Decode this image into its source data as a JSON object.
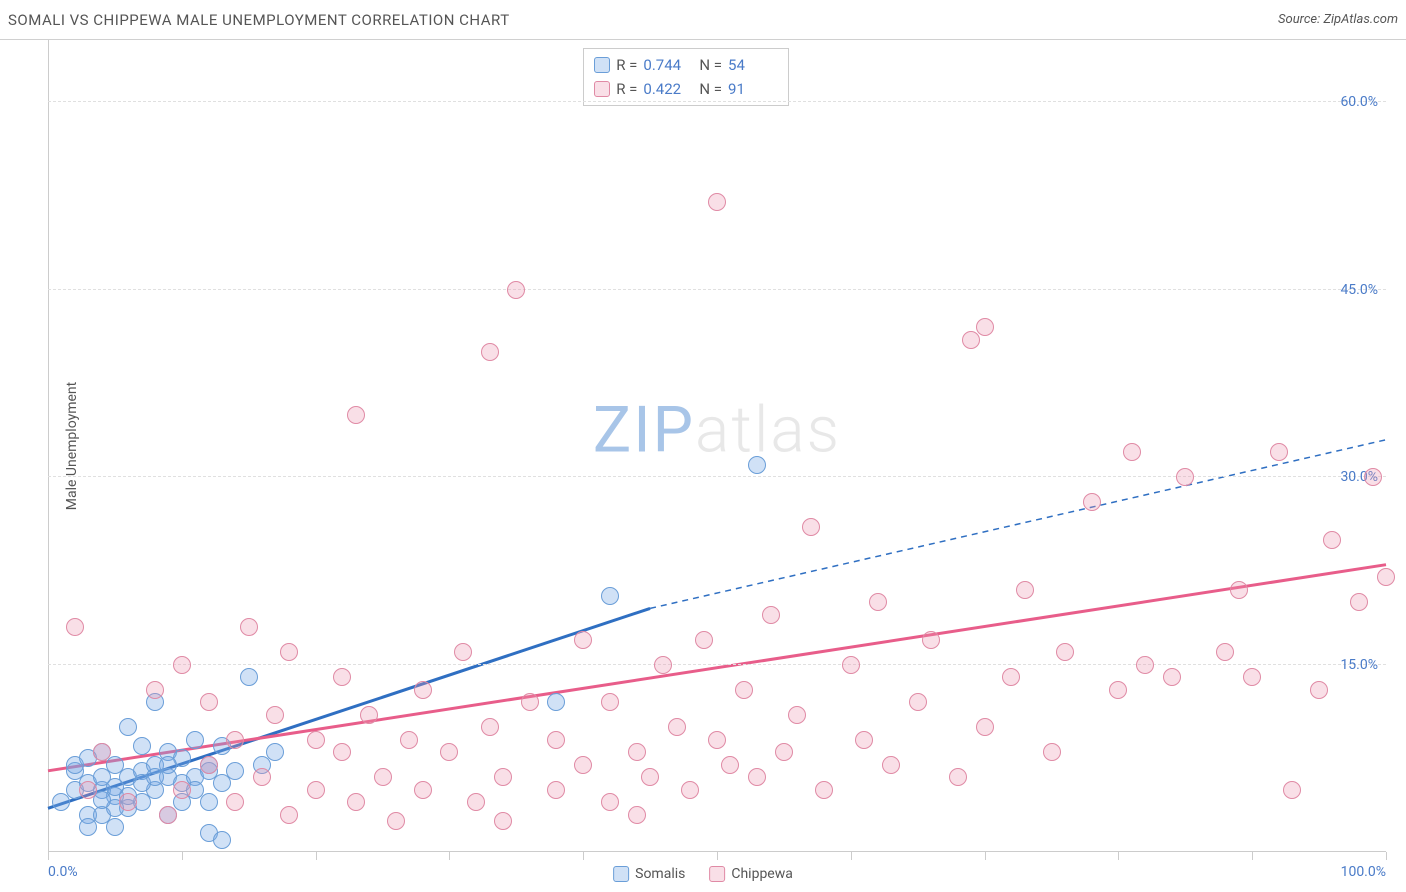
{
  "header": {
    "title": "SOMALI VS CHIPPEWA MALE UNEMPLOYMENT CORRELATION CHART",
    "source_prefix": "Source: ",
    "source_name": "ZipAtlas.com"
  },
  "ylabel": "Male Unemployment",
  "watermark": {
    "prefix": "ZIP",
    "suffix": "atlas"
  },
  "chart": {
    "type": "scatter",
    "xlim": [
      0,
      100
    ],
    "ylim": [
      0,
      65
    ],
    "xtick_positions": [
      0,
      10,
      20,
      30,
      40,
      50,
      60,
      70,
      80,
      90,
      100
    ],
    "xtick_labels": {
      "0": "0.0%",
      "100": "100.0%"
    },
    "ytick_positions": [
      15,
      30,
      45,
      60
    ],
    "ytick_labels": [
      "15.0%",
      "30.0%",
      "45.0%",
      "60.0%"
    ],
    "grid_color": "#e0e0e0",
    "axis_color": "#cccccc",
    "tick_label_color": "#4a7bc8",
    "point_radius": 9,
    "series": [
      {
        "name": "Somalis",
        "fill": "rgba(120,170,230,0.35)",
        "stroke": "#6a9ed8",
        "trend_color": "#2f6fc2",
        "trend_width": 3,
        "R": "0.744",
        "N": "54",
        "trend": {
          "x1": 0,
          "y1": 3.5,
          "x2": 45,
          "y2": 19.5,
          "dash_to_x": 100,
          "dash_to_y": 33
        },
        "points": [
          [
            1,
            4
          ],
          [
            2,
            5
          ],
          [
            2,
            6.5
          ],
          [
            3,
            3
          ],
          [
            3,
            5.5
          ],
          [
            4,
            5
          ],
          [
            4,
            6
          ],
          [
            4,
            8
          ],
          [
            5,
            2
          ],
          [
            5,
            4.5
          ],
          [
            5,
            7
          ],
          [
            6,
            3.5
          ],
          [
            6,
            6
          ],
          [
            6,
            10
          ],
          [
            7,
            4
          ],
          [
            7,
            6.5
          ],
          [
            7,
            8.5
          ],
          [
            8,
            5
          ],
          [
            8,
            7
          ],
          [
            8,
            12
          ],
          [
            9,
            3
          ],
          [
            9,
            6
          ],
          [
            9,
            8
          ],
          [
            10,
            5.5
          ],
          [
            10,
            7.5
          ],
          [
            11,
            6
          ],
          [
            11,
            9
          ],
          [
            12,
            4
          ],
          [
            12,
            7
          ],
          [
            13,
            5.5
          ],
          [
            13,
            8.5
          ],
          [
            14,
            6.5
          ],
          [
            15,
            14
          ],
          [
            16,
            7
          ],
          [
            17,
            8
          ],
          [
            12,
            1.5
          ],
          [
            13,
            1
          ],
          [
            3,
            2
          ],
          [
            4,
            3
          ],
          [
            5,
            3.5
          ],
          [
            6,
            4.5
          ],
          [
            7,
            5.5
          ],
          [
            8,
            6
          ],
          [
            9,
            7
          ],
          [
            10,
            4
          ],
          [
            11,
            5
          ],
          [
            12,
            6.5
          ],
          [
            38,
            12
          ],
          [
            42,
            20.5
          ],
          [
            53,
            31
          ],
          [
            2,
            7
          ],
          [
            3,
            7.5
          ],
          [
            4,
            4.2
          ],
          [
            5,
            5.2
          ]
        ]
      },
      {
        "name": "Chippewa",
        "fill": "rgba(235,150,175,0.30)",
        "stroke": "#e08aa5",
        "trend_color": "#e85d8a",
        "trend_width": 3,
        "R": "0.422",
        "N": "91",
        "trend": {
          "x1": 0,
          "y1": 6.5,
          "x2": 100,
          "y2": 23
        },
        "points": [
          [
            2,
            18
          ],
          [
            3,
            5
          ],
          [
            4,
            8
          ],
          [
            6,
            4
          ],
          [
            8,
            13
          ],
          [
            9,
            3
          ],
          [
            10,
            5
          ],
          [
            10,
            15
          ],
          [
            12,
            7
          ],
          [
            12,
            12
          ],
          [
            14,
            4
          ],
          [
            14,
            9
          ],
          [
            15,
            18
          ],
          [
            16,
            6
          ],
          [
            17,
            11
          ],
          [
            18,
            3
          ],
          [
            18,
            16
          ],
          [
            20,
            5
          ],
          [
            20,
            9
          ],
          [
            22,
            8
          ],
          [
            22,
            14
          ],
          [
            23,
            4
          ],
          [
            23,
            35
          ],
          [
            24,
            11
          ],
          [
            25,
            6
          ],
          [
            26,
            2.5
          ],
          [
            27,
            9
          ],
          [
            28,
            5
          ],
          [
            28,
            13
          ],
          [
            30,
            8
          ],
          [
            31,
            16
          ],
          [
            32,
            4
          ],
          [
            33,
            40
          ],
          [
            33,
            10
          ],
          [
            34,
            6
          ],
          [
            35,
            45
          ],
          [
            36,
            12
          ],
          [
            38,
            5
          ],
          [
            38,
            9
          ],
          [
            40,
            7
          ],
          [
            40,
            17
          ],
          [
            42,
            4
          ],
          [
            42,
            12
          ],
          [
            44,
            8
          ],
          [
            45,
            6
          ],
          [
            46,
            15
          ],
          [
            47,
            10
          ],
          [
            48,
            5
          ],
          [
            49,
            17
          ],
          [
            50,
            9
          ],
          [
            50,
            52
          ],
          [
            51,
            7
          ],
          [
            52,
            13
          ],
          [
            53,
            6
          ],
          [
            54,
            19
          ],
          [
            55,
            8
          ],
          [
            56,
            11
          ],
          [
            57,
            26
          ],
          [
            58,
            5
          ],
          [
            60,
            15
          ],
          [
            61,
            9
          ],
          [
            62,
            20
          ],
          [
            63,
            7
          ],
          [
            65,
            12
          ],
          [
            66,
            17
          ],
          [
            68,
            6
          ],
          [
            69,
            41
          ],
          [
            70,
            10
          ],
          [
            70,
            42
          ],
          [
            72,
            14
          ],
          [
            73,
            21
          ],
          [
            75,
            8
          ],
          [
            76,
            16
          ],
          [
            78,
            28
          ],
          [
            80,
            13
          ],
          [
            81,
            32
          ],
          [
            82,
            15
          ],
          [
            84,
            14
          ],
          [
            85,
            30
          ],
          [
            88,
            16
          ],
          [
            89,
            21
          ],
          [
            90,
            14
          ],
          [
            92,
            32
          ],
          [
            93,
            5
          ],
          [
            95,
            13
          ],
          [
            96,
            25
          ],
          [
            98,
            20
          ],
          [
            99,
            30
          ],
          [
            100,
            22
          ],
          [
            34,
            2.5
          ],
          [
            44,
            3
          ]
        ]
      }
    ]
  },
  "legend_top": {
    "rows": [
      {
        "swatch_fill": "rgba(120,170,230,0.35)",
        "swatch_stroke": "#6a9ed8",
        "r_label": "R =",
        "r_val": "0.744",
        "n_label": "N =",
        "n_val": "54"
      },
      {
        "swatch_fill": "rgba(235,150,175,0.30)",
        "swatch_stroke": "#e08aa5",
        "r_label": "R =",
        "r_val": "0.422",
        "n_label": "N =",
        "n_val": "91"
      }
    ]
  },
  "legend_bottom": {
    "items": [
      {
        "swatch_fill": "rgba(120,170,230,0.35)",
        "swatch_stroke": "#6a9ed8",
        "label": "Somalis"
      },
      {
        "swatch_fill": "rgba(235,150,175,0.30)",
        "swatch_stroke": "#e08aa5",
        "label": "Chippewa"
      }
    ]
  }
}
